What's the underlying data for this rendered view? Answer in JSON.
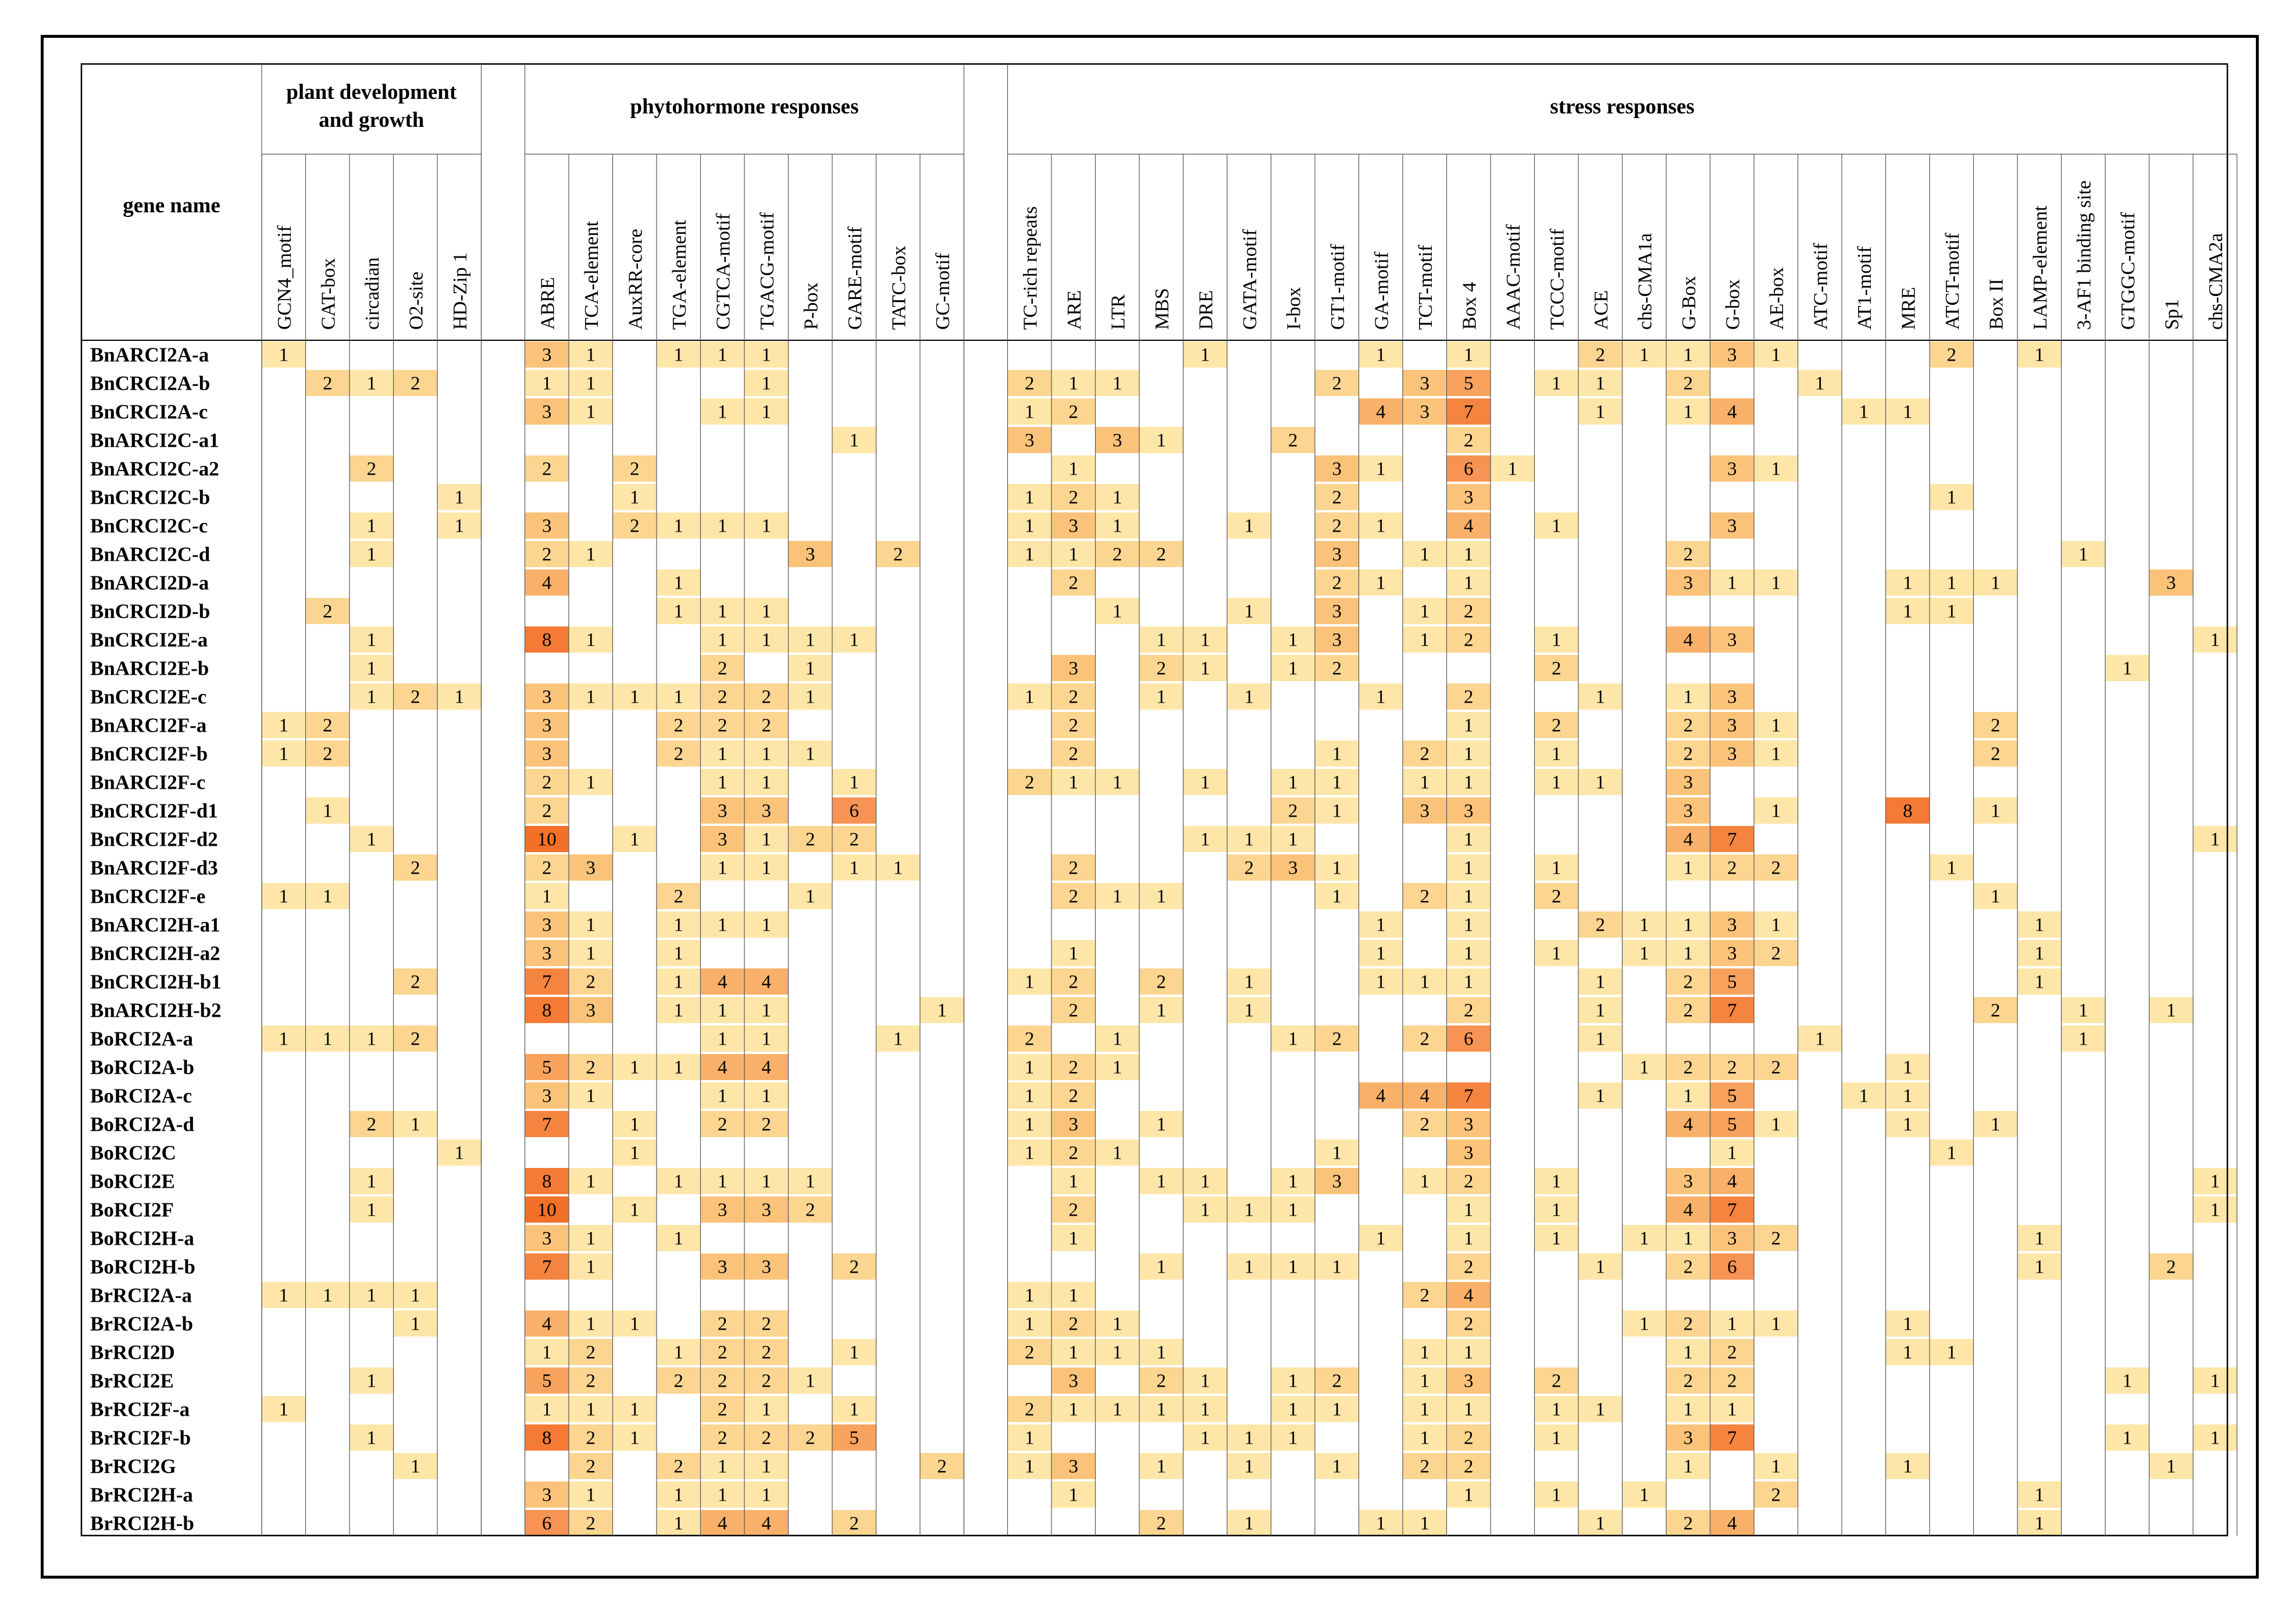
{
  "chart_data": {
    "type": "heatmap",
    "row_header": "gene name",
    "groups": [
      {
        "label": "plant development and growth",
        "lines": [
          "plant development",
          "and growth"
        ],
        "start": 0,
        "count": 5
      },
      {
        "label": "phytohormone responses",
        "lines": [
          "phytohormone responses"
        ],
        "start": 5,
        "count": 10
      },
      {
        "label": "stress responses",
        "lines": [
          "stress responses"
        ],
        "start": 15,
        "count": 28
      }
    ],
    "columns": [
      "GCN4_motif",
      "CAT-box",
      "circadian",
      "O2-site",
      "HD-Zip 1",
      "ABRE",
      "TCA-element",
      "AuxRR-core",
      "TGA-element",
      "CGTCA-motif",
      "TGACG-motif",
      "P-box",
      "GARE-motif",
      "TATC-box",
      "GC-motif",
      "TC-rich repeats",
      "ARE",
      "LTR",
      "MBS",
      "DRE",
      "GATA-motif",
      "I-box",
      "GT1-motif",
      "GA-motif",
      "TCT-motif",
      "Box 4",
      "AAAC-motif",
      "TCCC-motif",
      "ACE",
      "chs-CMA1a",
      "G-Box",
      "G-box",
      "AE-box",
      "ATC-motif",
      "AT1-motif",
      "MRE",
      "ATCT-motif",
      "Box II",
      "LAMP-element",
      "3-AF1 binding site",
      "GTGGC-motif",
      "Sp1",
      "chs-CMA2a"
    ],
    "rows": [
      {
        "gene": "BnARCI2A-a",
        "values": {
          "0": 1,
          "5": 3,
          "6": 1,
          "8": 1,
          "9": 1,
          "10": 1,
          "19": 1,
          "23": 1,
          "25": 1,
          "28": 2,
          "29": 1,
          "30": 1,
          "31": 3,
          "32": 1,
          "36": 2,
          "38": 1
        }
      },
      {
        "gene": "BnCRCI2A-b",
        "values": {
          "1": 2,
          "2": 1,
          "3": 2,
          "5": 1,
          "6": 1,
          "10": 1,
          "15": 2,
          "16": 1,
          "17": 1,
          "22": 2,
          "24": 3,
          "25": 5,
          "27": 1,
          "28": 1,
          "30": 2,
          "33": 1
        }
      },
      {
        "gene": "BnCRCI2A-c",
        "values": {
          "5": 3,
          "6": 1,
          "9": 1,
          "10": 1,
          "15": 1,
          "16": 2,
          "23": 4,
          "24": 3,
          "25": 7,
          "28": 1,
          "30": 1,
          "31": 4,
          "34": 1,
          "35": 1
        }
      },
      {
        "gene": "BnARCI2C-a1",
        "values": {
          "12": 1,
          "15": 3,
          "17": 3,
          "18": 1,
          "21": 2,
          "25": 2
        }
      },
      {
        "gene": "BnARCI2C-a2",
        "values": {
          "2": 2,
          "5": 2,
          "7": 2,
          "16": 1,
          "22": 3,
          "23": 1,
          "25": 6,
          "26": 1,
          "31": 3,
          "32": 1
        }
      },
      {
        "gene": "BnCRCI2C-b",
        "values": {
          "4": 1,
          "7": 1,
          "15": 1,
          "16": 2,
          "17": 1,
          "22": 2,
          "25": 3,
          "36": 1
        }
      },
      {
        "gene": "BnCRCI2C-c",
        "values": {
          "2": 1,
          "4": 1,
          "5": 3,
          "7": 2,
          "8": 1,
          "9": 1,
          "10": 1,
          "15": 1,
          "16": 3,
          "17": 1,
          "20": 1,
          "22": 2,
          "23": 1,
          "25": 4,
          "27": 1,
          "31": 3
        }
      },
      {
        "gene": "BnARCI2C-d",
        "values": {
          "2": 1,
          "5": 2,
          "6": 1,
          "11": 3,
          "13": 2,
          "15": 1,
          "16": 1,
          "17": 2,
          "18": 2,
          "22": 3,
          "24": 1,
          "25": 1,
          "30": 2,
          "39": 1
        }
      },
      {
        "gene": "BnARCI2D-a",
        "values": {
          "5": 4,
          "8": 1,
          "16": 2,
          "22": 2,
          "23": 1,
          "25": 1,
          "30": 3,
          "31": 1,
          "32": 1,
          "35": 1,
          "36": 1,
          "37": 1,
          "41": 3
        }
      },
      {
        "gene": "BnCRCI2D-b",
        "values": {
          "1": 2,
          "8": 1,
          "9": 1,
          "10": 1,
          "17": 1,
          "20": 1,
          "22": 3,
          "24": 1,
          "25": 2,
          "35": 1,
          "36": 1
        }
      },
      {
        "gene": "BnCRCI2E-a",
        "values": {
          "2": 1,
          "5": 8,
          "6": 1,
          "9": 1,
          "10": 1,
          "11": 1,
          "12": 1,
          "18": 1,
          "19": 1,
          "21": 1,
          "22": 3,
          "24": 1,
          "25": 2,
          "27": 1,
          "30": 4,
          "31": 3,
          "42": 1
        }
      },
      {
        "gene": "BnARCI2E-b",
        "values": {
          "2": 1,
          "9": 2,
          "11": 1,
          "16": 3,
          "18": 2,
          "19": 1,
          "21": 1,
          "22": 2,
          "27": 2,
          "40": 1
        }
      },
      {
        "gene": "BnCRCI2E-c",
        "values": {
          "2": 1,
          "3": 2,
          "4": 1,
          "5": 3,
          "6": 1,
          "7": 1,
          "8": 1,
          "9": 2,
          "10": 2,
          "11": 1,
          "15": 1,
          "16": 2,
          "18": 1,
          "20": 1,
          "23": 1,
          "25": 2,
          "28": 1,
          "30": 1,
          "31": 3
        }
      },
      {
        "gene": "BnARCI2F-a",
        "values": {
          "0": 1,
          "1": 2,
          "5": 3,
          "8": 2,
          "9": 2,
          "10": 2,
          "16": 2,
          "25": 1,
          "27": 2,
          "30": 2,
          "31": 3,
          "32": 1,
          "37": 2
        }
      },
      {
        "gene": "BnCRCI2F-b",
        "values": {
          "0": 1,
          "1": 2,
          "5": 3,
          "8": 2,
          "9": 1,
          "10": 1,
          "11": 1,
          "16": 2,
          "22": 1,
          "24": 2,
          "25": 1,
          "27": 1,
          "30": 2,
          "31": 3,
          "32": 1,
          "37": 2
        }
      },
      {
        "gene": "BnARCI2F-c",
        "values": {
          "5": 2,
          "6": 1,
          "9": 1,
          "10": 1,
          "12": 1,
          "15": 2,
          "16": 1,
          "17": 1,
          "19": 1,
          "21": 1,
          "22": 1,
          "24": 1,
          "25": 1,
          "27": 1,
          "28": 1,
          "30": 3
        }
      },
      {
        "gene": "BnCRCI2F-d1",
        "values": {
          "1": 1,
          "5": 2,
          "9": 3,
          "10": 3,
          "12": 6,
          "21": 2,
          "22": 1,
          "24": 3,
          "25": 3,
          "30": 3,
          "32": 1,
          "35": 8,
          "37": 1
        }
      },
      {
        "gene": "BnCRCI2F-d2",
        "values": {
          "2": 1,
          "5": 10,
          "7": 1,
          "9": 3,
          "10": 1,
          "11": 2,
          "12": 2,
          "19": 1,
          "20": 1,
          "21": 1,
          "25": 1,
          "30": 4,
          "31": 7,
          "42": 1
        }
      },
      {
        "gene": "BnARCI2F-d3",
        "values": {
          "3": 2,
          "5": 2,
          "6": 3,
          "9": 1,
          "10": 1,
          "12": 1,
          "13": 1,
          "16": 2,
          "20": 2,
          "21": 3,
          "22": 1,
          "25": 1,
          "27": 1,
          "30": 1,
          "31": 2,
          "32": 2,
          "36": 1
        }
      },
      {
        "gene": "BnCRCI2F-e",
        "values": {
          "0": 1,
          "1": 1,
          "5": 1,
          "8": 2,
          "11": 1,
          "16": 2,
          "17": 1,
          "18": 1,
          "22": 1,
          "24": 2,
          "25": 1,
          "27": 2,
          "37": 1
        }
      },
      {
        "gene": "BnARCI2H-a1",
        "values": {
          "5": 3,
          "6": 1,
          "8": 1,
          "9": 1,
          "10": 1,
          "23": 1,
          "25": 1,
          "28": 2,
          "29": 1,
          "30": 1,
          "31": 3,
          "32": 1,
          "38": 1
        }
      },
      {
        "gene": "BnCRCI2H-a2",
        "values": {
          "5": 3,
          "6": 1,
          "8": 1,
          "16": 1,
          "23": 1,
          "25": 1,
          "27": 1,
          "29": 1,
          "30": 1,
          "31": 3,
          "32": 2,
          "38": 1
        }
      },
      {
        "gene": "BnCRCI2H-b1",
        "values": {
          "3": 2,
          "5": 7,
          "6": 2,
          "8": 1,
          "9": 4,
          "10": 4,
          "15": 1,
          "16": 2,
          "18": 2,
          "20": 1,
          "23": 1,
          "24": 1,
          "25": 1,
          "28": 1,
          "30": 2,
          "31": 5,
          "38": 1
        }
      },
      {
        "gene": "BnARCI2H-b2",
        "values": {
          "5": 8,
          "6": 3,
          "8": 1,
          "9": 1,
          "10": 1,
          "14": 1,
          "16": 2,
          "18": 1,
          "20": 1,
          "25": 2,
          "28": 1,
          "30": 2,
          "31": 7,
          "37": 2,
          "39": 1,
          "41": 1
        }
      },
      {
        "gene": "BoRCI2A-a",
        "values": {
          "0": 1,
          "1": 1,
          "2": 1,
          "3": 2,
          "9": 1,
          "10": 1,
          "13": 1,
          "15": 2,
          "17": 1,
          "21": 1,
          "22": 2,
          "24": 2,
          "25": 6,
          "28": 1,
          "33": 1,
          "39": 1
        }
      },
      {
        "gene": "BoRCI2A-b",
        "values": {
          "5": 5,
          "6": 2,
          "7": 1,
          "8": 1,
          "9": 4,
          "10": 4,
          "15": 1,
          "16": 2,
          "17": 1,
          "29": 1,
          "30": 2,
          "31": 2,
          "32": 2,
          "35": 1
        }
      },
      {
        "gene": "BoRCI2A-c",
        "values": {
          "5": 3,
          "6": 1,
          "9": 1,
          "10": 1,
          "15": 1,
          "16": 2,
          "23": 4,
          "24": 4,
          "25": 7,
          "28": 1,
          "30": 1,
          "31": 5,
          "34": 1,
          "35": 1
        }
      },
      {
        "gene": "BoRCI2A-d",
        "values": {
          "2": 2,
          "3": 1,
          "5": 7,
          "7": 1,
          "9": 2,
          "10": 2,
          "15": 1,
          "16": 3,
          "18": 1,
          "24": 2,
          "25": 3,
          "30": 4,
          "31": 5,
          "32": 1,
          "35": 1,
          "37": 1
        }
      },
      {
        "gene": "BoRCI2C",
        "values": {
          "4": 1,
          "7": 1,
          "15": 1,
          "16": 2,
          "17": 1,
          "22": 1,
          "25": 3,
          "31": 1,
          "36": 1
        }
      },
      {
        "gene": "BoRCI2E",
        "values": {
          "2": 1,
          "5": 8,
          "6": 1,
          "8": 1,
          "9": 1,
          "10": 1,
          "11": 1,
          "16": 1,
          "18": 1,
          "19": 1,
          "21": 1,
          "22": 3,
          "24": 1,
          "25": 2,
          "27": 1,
          "30": 3,
          "31": 4,
          "42": 1
        }
      },
      {
        "gene": "BoRCI2F",
        "values": {
          "2": 1,
          "5": 10,
          "7": 1,
          "9": 3,
          "10": 3,
          "11": 2,
          "16": 2,
          "19": 1,
          "20": 1,
          "21": 1,
          "25": 1,
          "27": 1,
          "30": 4,
          "31": 7,
          "42": 1
        }
      },
      {
        "gene": "BoRCI2H-a",
        "values": {
          "5": 3,
          "6": 1,
          "8": 1,
          "16": 1,
          "23": 1,
          "25": 1,
          "27": 1,
          "29": 1,
          "30": 1,
          "31": 3,
          "32": 2,
          "38": 1
        }
      },
      {
        "gene": "BoRCI2H-b",
        "values": {
          "5": 7,
          "6": 1,
          "9": 3,
          "10": 3,
          "12": 2,
          "18": 1,
          "20": 1,
          "21": 1,
          "22": 1,
          "25": 2,
          "28": 1,
          "30": 2,
          "31": 6,
          "38": 1,
          "41": 2
        }
      },
      {
        "gene": "BrRCI2A-a",
        "values": {
          "0": 1,
          "1": 1,
          "2": 1,
          "3": 1,
          "15": 1,
          "16": 1,
          "24": 2,
          "25": 4
        }
      },
      {
        "gene": "BrRCI2A-b",
        "values": {
          "3": 1,
          "5": 4,
          "6": 1,
          "7": 1,
          "9": 2,
          "10": 2,
          "15": 1,
          "16": 2,
          "17": 1,
          "25": 2,
          "29": 1,
          "30": 2,
          "31": 1,
          "32": 1,
          "35": 1
        }
      },
      {
        "gene": "BrRCI2D",
        "values": {
          "5": 1,
          "6": 2,
          "8": 1,
          "9": 2,
          "10": 2,
          "12": 1,
          "15": 2,
          "16": 1,
          "17": 1,
          "18": 1,
          "24": 1,
          "25": 1,
          "30": 1,
          "31": 2,
          "35": 1,
          "36": 1
        }
      },
      {
        "gene": "BrRCI2E",
        "values": {
          "2": 1,
          "5": 5,
          "6": 2,
          "8": 2,
          "9": 2,
          "10": 2,
          "11": 1,
          "16": 3,
          "18": 2,
          "19": 1,
          "21": 1,
          "22": 2,
          "24": 1,
          "25": 3,
          "27": 2,
          "30": 2,
          "31": 2,
          "40": 1,
          "42": 1
        }
      },
      {
        "gene": "BrRCI2F-a",
        "values": {
          "0": 1,
          "5": 1,
          "6": 1,
          "7": 1,
          "9": 2,
          "10": 1,
          "12": 1,
          "15": 2,
          "16": 1,
          "17": 1,
          "18": 1,
          "19": 1,
          "21": 1,
          "22": 1,
          "24": 1,
          "25": 1,
          "27": 1,
          "28": 1,
          "30": 1,
          "31": 1
        }
      },
      {
        "gene": "BrRCI2F-b",
        "values": {
          "2": 1,
          "5": 8,
          "6": 2,
          "7": 1,
          "9": 2,
          "10": 2,
          "11": 2,
          "12": 5,
          "15": 1,
          "19": 1,
          "20": 1,
          "21": 1,
          "24": 1,
          "25": 2,
          "27": 1,
          "30": 3,
          "31": 7,
          "40": 1,
          "42": 1
        }
      },
      {
        "gene": "BrRCI2G",
        "values": {
          "3": 1,
          "6": 2,
          "8": 2,
          "9": 1,
          "10": 1,
          "14": 2,
          "15": 1,
          "16": 3,
          "18": 1,
          "20": 1,
          "22": 1,
          "24": 2,
          "25": 2,
          "30": 1,
          "32": 1,
          "35": 1,
          "41": 1
        }
      },
      {
        "gene": "BrRCI2H-a",
        "values": {
          "5": 3,
          "6": 1,
          "8": 1,
          "9": 1,
          "10": 1,
          "16": 1,
          "25": 1,
          "27": 1,
          "29": 1,
          "32": 2,
          "38": 1
        }
      },
      {
        "gene": "BrRCI2H-b",
        "values": {
          "5": 6,
          "6": 2,
          "8": 1,
          "9": 4,
          "10": 4,
          "12": 2,
          "18": 2,
          "20": 1,
          "23": 1,
          "24": 1,
          "28": 1,
          "30": 2,
          "31": 4,
          "38": 1
        }
      }
    ],
    "color_scale": {
      "1": "#fde6a8",
      "2": "#fcd590",
      "3": "#fbc37a",
      "4": "#f9b16a",
      "5": "#f8a25d",
      "6": "#f79353",
      "7": "#f5843f",
      "8": "#f47a35",
      "10": "#f27028"
    }
  }
}
